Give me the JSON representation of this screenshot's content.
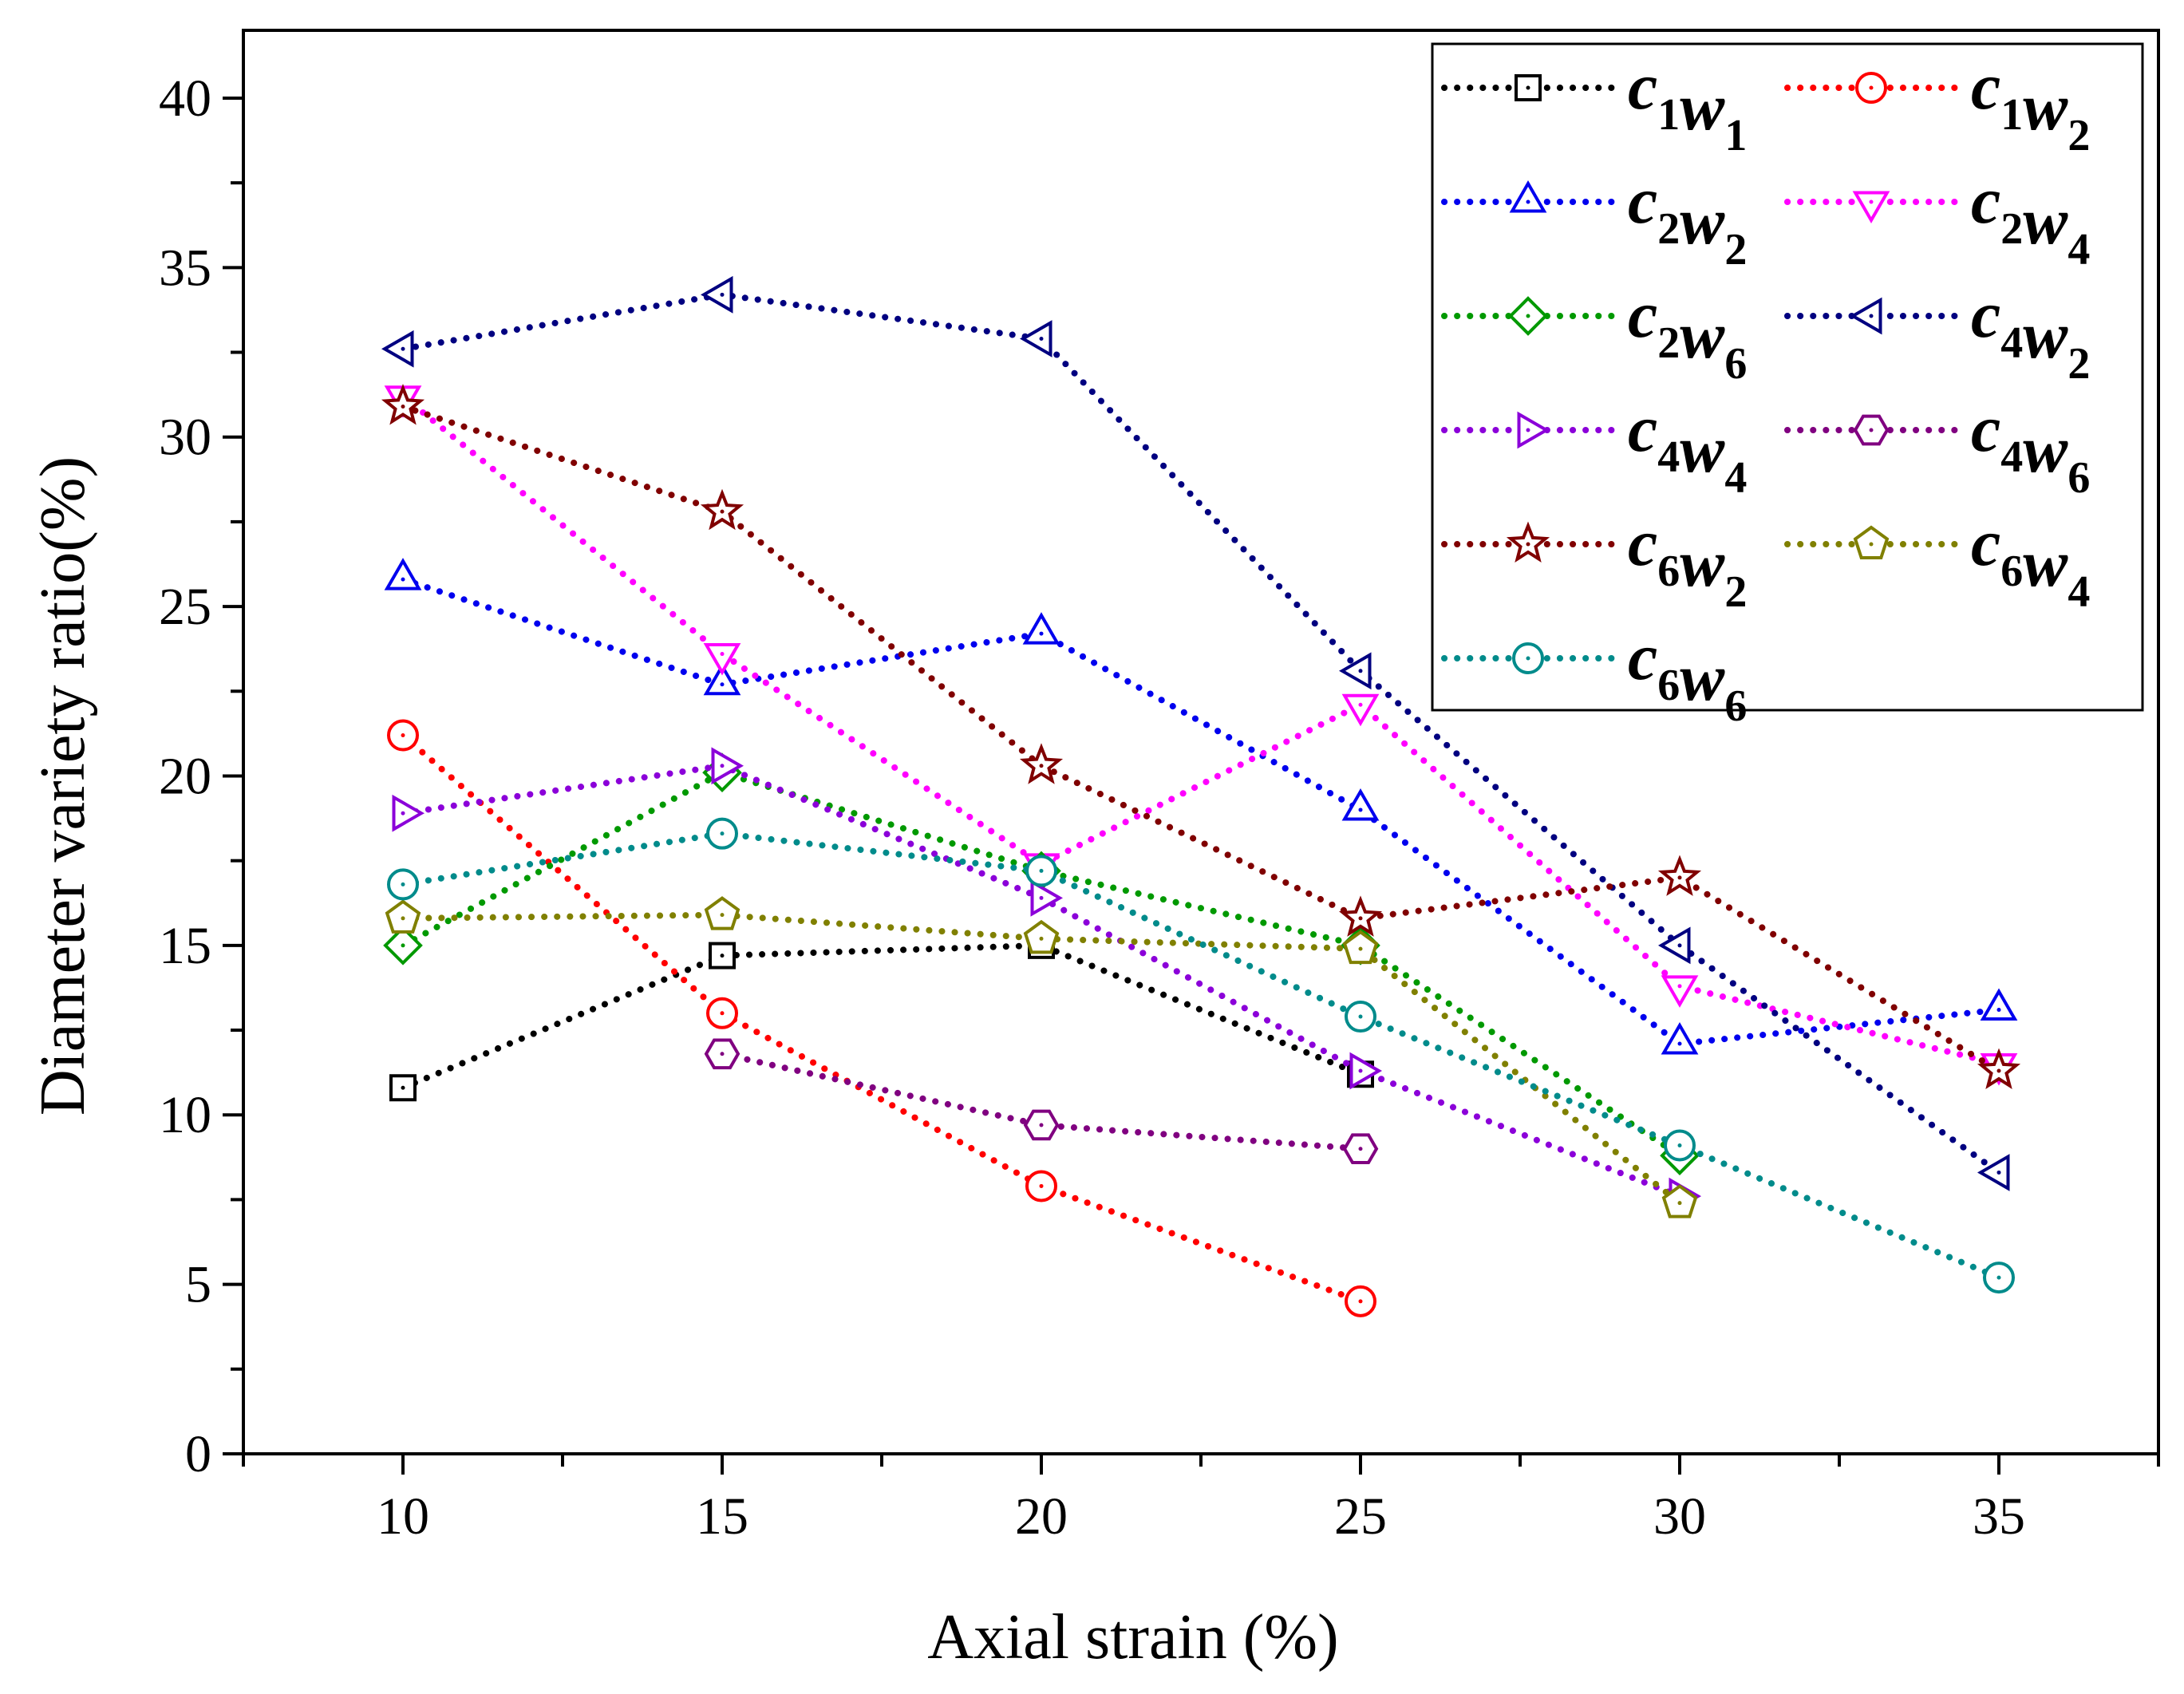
{
  "chart_data": {
    "type": "line",
    "xlabel": "Axial strain (%)",
    "ylabel": "Diameter variety ratio(%)",
    "xlim": [
      7.5,
      37.5
    ],
    "ylim": [
      0,
      42
    ],
    "xticks": [
      10,
      15,
      20,
      25,
      30,
      35
    ],
    "yticks": [
      0,
      5,
      10,
      15,
      20,
      25,
      30,
      35,
      40
    ],
    "grid": false,
    "legend_position": "top-right",
    "series": [
      {
        "name": "c1w1",
        "label_base": [
          [
            "c",
            "1"
          ],
          [
            "w",
            "1"
          ]
        ],
        "color": "#000000",
        "marker": "square",
        "x": [
          10,
          15,
          20,
          25
        ],
        "y": [
          10.8,
          14.7,
          15.0,
          11.2
        ]
      },
      {
        "name": "c1w2",
        "label_base": [
          [
            "c",
            "1"
          ],
          [
            "w",
            "2"
          ]
        ],
        "color": "#ff0000",
        "marker": "circle",
        "x": [
          10,
          15,
          20,
          25
        ],
        "y": [
          21.2,
          13.0,
          7.9,
          4.5
        ]
      },
      {
        "name": "c2w2",
        "label_base": [
          [
            "c",
            "2"
          ],
          [
            "w",
            "2"
          ]
        ],
        "color": "#0000ee",
        "marker": "triangle-up",
        "x": [
          10,
          15,
          20,
          25,
          30,
          35
        ],
        "y": [
          25.8,
          22.7,
          24.2,
          19.0,
          12.1,
          13.1
        ]
      },
      {
        "name": "c2w4",
        "label_base": [
          [
            "c",
            "2"
          ],
          [
            "w",
            "4"
          ]
        ],
        "color": "#ff00ff",
        "marker": "triangle-down",
        "x": [
          10,
          15,
          20,
          25,
          30,
          35
        ],
        "y": [
          31.2,
          23.6,
          17.4,
          22.1,
          13.8,
          11.5
        ]
      },
      {
        "name": "c2w6",
        "label_base": [
          [
            "c",
            "2"
          ],
          [
            "w",
            "6"
          ]
        ],
        "color": "#009900",
        "marker": "diamond",
        "x": [
          10,
          15,
          20,
          25,
          30
        ],
        "y": [
          15.0,
          20.1,
          17.2,
          15.0,
          8.8
        ]
      },
      {
        "name": "c4w2",
        "label_base": [
          [
            "c",
            "4"
          ],
          [
            "w",
            "2"
          ]
        ],
        "color": "#000080",
        "marker": "triangle-left",
        "x": [
          10,
          15,
          20,
          25,
          30,
          35
        ],
        "y": [
          32.6,
          34.2,
          32.9,
          23.1,
          15.0,
          8.3
        ]
      },
      {
        "name": "c4w4",
        "label_base": [
          [
            "c",
            "4"
          ],
          [
            "w",
            "4"
          ]
        ],
        "color": "#8b00d9",
        "marker": "triangle-right",
        "x": [
          10,
          15,
          20,
          25,
          30
        ],
        "y": [
          18.9,
          20.3,
          16.4,
          11.3,
          7.6
        ]
      },
      {
        "name": "c4w6",
        "label_base": [
          [
            "c",
            "4"
          ],
          [
            "w",
            "6"
          ]
        ],
        "color": "#800080",
        "marker": "hexagon",
        "x": [
          15,
          20,
          25
        ],
        "y": [
          11.8,
          9.7,
          9.0
        ]
      },
      {
        "name": "c6w2",
        "label_base": [
          [
            "c",
            "6"
          ],
          [
            "w",
            "2"
          ]
        ],
        "color": "#800000",
        "marker": "star",
        "x": [
          10,
          15,
          20,
          25,
          30,
          35
        ],
        "y": [
          30.9,
          27.8,
          20.3,
          15.8,
          17.0,
          11.3
        ]
      },
      {
        "name": "c6w4",
        "label_base": [
          [
            "c",
            "6"
          ],
          [
            "w",
            "4"
          ]
        ],
        "color": "#808000",
        "marker": "pentagon",
        "x": [
          10,
          15,
          20,
          25,
          30
        ],
        "y": [
          15.8,
          15.9,
          15.2,
          14.9,
          7.4
        ]
      },
      {
        "name": "c6w6",
        "label_base": [
          [
            "c",
            "6"
          ],
          [
            "w",
            "6"
          ]
        ],
        "color": "#008b8b",
        "marker": "circle",
        "x": [
          10,
          15,
          20,
          25,
          30,
          35
        ],
        "y": [
          16.8,
          18.3,
          17.2,
          12.9,
          9.1,
          5.2
        ]
      }
    ]
  }
}
